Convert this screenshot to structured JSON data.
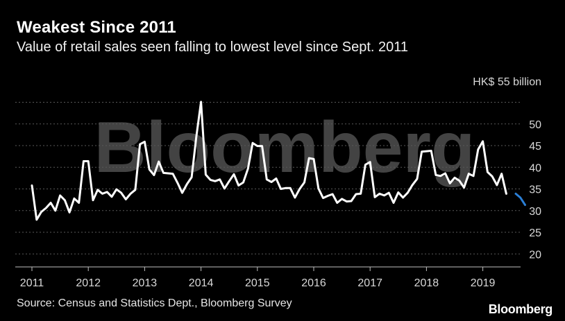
{
  "header": {
    "title": "Weakest Since 2011",
    "subtitle": "Value of retail sales seen falling to lowest level since Sept. 2011"
  },
  "footer": {
    "source": "Source: Census and Statistics Dept., Bloomberg Survey",
    "brand": "Bloomberg"
  },
  "watermark": "Bloomberg",
  "colors": {
    "background": "#000000",
    "actual_line": "#ffffff",
    "forecast_line": "#2b7fd6",
    "gridline": "#5a5a5a"
  },
  "chart_data": {
    "type": "line",
    "title": "Weakest Since 2011",
    "subtitle": "Value of retail sales seen falling to lowest level since Sept. 2011",
    "y_unit_label": "HK$ 55 billion",
    "ylim": [
      17,
      57
    ],
    "yticks": [
      20,
      25,
      30,
      35,
      40,
      45,
      50
    ],
    "x_ticks": [
      "2011",
      "2012",
      "2013",
      "2014",
      "2015",
      "2016",
      "2017",
      "2018",
      "2019"
    ],
    "x_start": "2011-01",
    "grid": true,
    "series": [
      {
        "name": "",
        "style": "solid-white",
        "values": [
          35.8,
          27.9,
          29.7,
          30.6,
          31.8,
          30.0,
          33.5,
          32.4,
          29.6,
          32.8,
          31.8,
          41.4,
          41.4,
          32.4,
          34.8,
          33.9,
          34.3,
          33.2,
          34.9,
          34.1,
          32.6,
          33.9,
          34.8,
          45.3,
          45.9,
          39.5,
          38.2,
          41.3,
          38.7,
          38.6,
          38.5,
          36.4,
          34.1,
          36.1,
          37.7,
          47.0,
          55.1,
          38.3,
          37.1,
          36.8,
          37.2,
          35.1,
          36.8,
          38.4,
          35.8,
          36.5,
          39.7,
          45.6,
          44.9,
          44.9,
          37.2,
          36.6,
          37.4,
          35.0,
          35.2,
          35.2,
          33.0,
          35.0,
          36.5,
          42.1,
          41.9,
          35.1,
          32.9,
          33.4,
          33.8,
          31.8,
          32.7,
          32.1,
          32.2,
          33.8,
          33.9,
          40.6,
          41.2,
          33.1,
          33.9,
          33.5,
          34.1,
          31.8,
          34.2,
          33.0,
          34.1,
          35.9,
          37.3,
          43.6,
          43.7,
          43.8,
          38.2,
          38.0,
          38.6,
          36.3,
          37.6,
          36.9,
          35.3,
          38.5,
          38.0,
          44.1,
          46.0,
          38.9,
          37.9,
          35.9,
          38.5,
          33.9
        ]
      },
      {
        "name": "",
        "style": "solid-blue",
        "start_index": 103,
        "values": [
          33.9,
          33.0,
          31.3
        ]
      }
    ]
  }
}
